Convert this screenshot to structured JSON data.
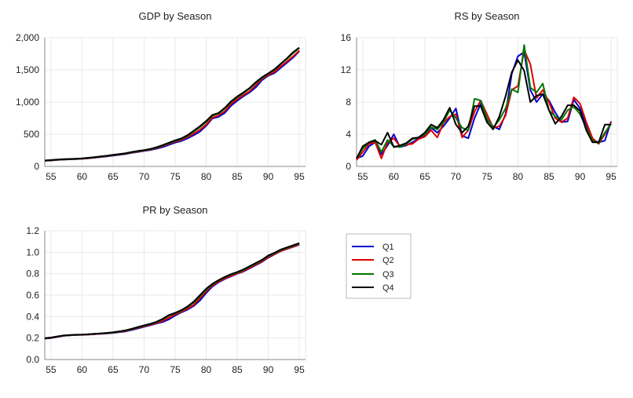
{
  "legend": {
    "items": [
      {
        "label": "Q1",
        "color": "#0000cc"
      },
      {
        "label": "Q2",
        "color": "#dd0000"
      },
      {
        "label": "Q3",
        "color": "#007700"
      },
      {
        "label": "Q4",
        "color": "#000000"
      }
    ]
  },
  "chart_data": [
    {
      "type": "line",
      "title": "GDP by Season",
      "xlabel": "",
      "ylabel": "",
      "xlim": [
        54,
        96
      ],
      "ylim": [
        0,
        2000
      ],
      "xticks": [
        55,
        60,
        65,
        70,
        75,
        80,
        85,
        90,
        95
      ],
      "xtick_labels": [
        "55",
        "60",
        "65",
        "70",
        "75",
        "80",
        "85",
        "90",
        "95"
      ],
      "yticks": [
        0,
        500,
        1000,
        1500,
        2000
      ],
      "ytick_labels": [
        "0",
        "500",
        "1,000",
        "1,500",
        "2,000"
      ],
      "grid": true,
      "x": [
        54,
        55,
        56,
        57,
        58,
        59,
        60,
        61,
        62,
        63,
        64,
        65,
        66,
        67,
        68,
        69,
        70,
        71,
        72,
        73,
        74,
        75,
        76,
        77,
        78,
        79,
        80,
        81,
        82,
        83,
        84,
        85,
        86,
        87,
        88,
        89,
        90,
        91,
        92,
        93,
        94,
        95
      ],
      "series": [
        {
          "name": "Q1",
          "values": [
            88,
            92,
            100,
            105,
            110,
            113,
            118,
            125,
            135,
            145,
            155,
            168,
            180,
            192,
            210,
            225,
            240,
            255,
            275,
            300,
            335,
            370,
            395,
            435,
            485,
            540,
            630,
            745,
            770,
            830,
            940,
            1020,
            1090,
            1150,
            1230,
            1340,
            1410,
            1450,
            1530,
            1610,
            1690,
            1790
          ]
        },
        {
          "name": "Q2",
          "values": [
            90,
            95,
            102,
            108,
            112,
            116,
            120,
            128,
            138,
            148,
            160,
            172,
            185,
            198,
            215,
            230,
            245,
            262,
            285,
            315,
            350,
            385,
            410,
            455,
            510,
            570,
            650,
            760,
            790,
            860,
            970,
            1045,
            1110,
            1170,
            1265,
            1360,
            1420,
            1470,
            1555,
            1630,
            1710,
            1800
          ]
        },
        {
          "name": "Q3",
          "values": [
            91,
            97,
            104,
            110,
            114,
            118,
            123,
            131,
            141,
            152,
            163,
            176,
            189,
            202,
            220,
            236,
            250,
            268,
            292,
            325,
            360,
            398,
            425,
            475,
            540,
            610,
            690,
            790,
            820,
            900,
            1000,
            1075,
            1140,
            1210,
            1300,
            1375,
            1440,
            1500,
            1590,
            1670,
            1760,
            1840
          ]
        },
        {
          "name": "Q4",
          "values": [
            92,
            99,
            106,
            112,
            116,
            120,
            125,
            134,
            144,
            155,
            166,
            179,
            192,
            205,
            224,
            240,
            254,
            272,
            298,
            332,
            368,
            405,
            435,
            485,
            555,
            625,
            705,
            800,
            830,
            910,
            1010,
            1085,
            1150,
            1220,
            1310,
            1385,
            1445,
            1510,
            1595,
            1680,
            1775,
            1845
          ]
        }
      ]
    },
    {
      "type": "line",
      "title": "RS by Season",
      "xlabel": "",
      "ylabel": "",
      "xlim": [
        54,
        96
      ],
      "ylim": [
        0,
        16
      ],
      "xticks": [
        55,
        60,
        65,
        70,
        75,
        80,
        85,
        90,
        95
      ],
      "xtick_labels": [
        "55",
        "60",
        "65",
        "70",
        "75",
        "80",
        "85",
        "90",
        "95"
      ],
      "yticks": [
        0,
        4,
        8,
        12,
        16
      ],
      "ytick_labels": [
        "0",
        "4",
        "8",
        "12",
        "16"
      ],
      "grid": true,
      "x": [
        54,
        55,
        56,
        57,
        58,
        59,
        60,
        61,
        62,
        63,
        64,
        65,
        66,
        67,
        68,
        69,
        70,
        71,
        72,
        73,
        74,
        75,
        76,
        77,
        78,
        79,
        80,
        81,
        82,
        83,
        84,
        85,
        86,
        87,
        88,
        89,
        90,
        91,
        92,
        93,
        94,
        95
      ],
      "series": [
        {
          "name": "Q1",
          "values": [
            1.0,
            1.3,
            2.5,
            3.0,
            1.5,
            2.6,
            4.0,
            2.4,
            2.6,
            3.0,
            3.5,
            3.9,
            4.8,
            4.2,
            5.0,
            6.0,
            7.2,
            3.8,
            3.5,
            6.0,
            7.8,
            5.8,
            5.0,
            4.6,
            6.5,
            11.5,
            13.7,
            14.2,
            9.5,
            8.0,
            9.0,
            8.2,
            6.7,
            5.5,
            5.6,
            8.3,
            7.2,
            5.2,
            3.3,
            3.0,
            3.2,
            5.6
          ]
        },
        {
          "name": "Q2",
          "values": [
            0.8,
            1.8,
            2.8,
            3.0,
            1.0,
            3.0,
            3.5,
            2.5,
            2.7,
            2.8,
            3.4,
            3.7,
            4.5,
            3.6,
            5.4,
            6.2,
            6.5,
            3.6,
            4.5,
            6.8,
            8.2,
            6.5,
            4.8,
            5.0,
            6.3,
            9.5,
            10.0,
            14.5,
            12.7,
            8.5,
            9.5,
            8.0,
            6.0,
            5.5,
            6.0,
            8.6,
            7.8,
            5.5,
            3.5,
            2.8,
            4.0,
            5.5
          ]
        },
        {
          "name": "Q3",
          "values": [
            1.0,
            2.2,
            3.0,
            3.3,
            1.8,
            3.3,
            2.5,
            2.4,
            2.8,
            3.4,
            3.6,
            4.0,
            4.9,
            4.6,
            5.5,
            7.0,
            6.0,
            4.8,
            4.5,
            8.4,
            8.2,
            6.0,
            4.8,
            5.8,
            7.2,
            9.6,
            9.2,
            15.1,
            9.8,
            9.2,
            10.3,
            7.0,
            6.2,
            5.8,
            7.0,
            7.4,
            6.5,
            4.8,
            3.2,
            2.9,
            4.2,
            5.3
          ]
        },
        {
          "name": "Q4",
          "values": [
            1.0,
            2.5,
            3.0,
            3.2,
            2.7,
            4.2,
            2.4,
            2.6,
            2.9,
            3.5,
            3.6,
            4.2,
            5.2,
            4.8,
            5.8,
            7.3,
            5.2,
            4.2,
            5.0,
            7.5,
            7.5,
            5.5,
            4.6,
            6.2,
            8.7,
            11.7,
            13.2,
            11.9,
            8.0,
            8.8,
            9.0,
            7.0,
            5.3,
            6.2,
            7.6,
            7.6,
            6.9,
            4.5,
            3.0,
            3.0,
            5.2,
            5.2
          ]
        }
      ]
    },
    {
      "type": "line",
      "title": "PR by Season",
      "xlabel": "",
      "ylabel": "",
      "xlim": [
        54,
        96
      ],
      "ylim": [
        0,
        1.2
      ],
      "xticks": [
        55,
        60,
        65,
        70,
        75,
        80,
        85,
        90,
        95
      ],
      "xtick_labels": [
        "55",
        "60",
        "65",
        "70",
        "75",
        "80",
        "85",
        "90",
        "95"
      ],
      "yticks": [
        0,
        0.2,
        0.4,
        0.6,
        0.8,
        1.0,
        1.2
      ],
      "ytick_labels": [
        "0.0",
        "0.2",
        "0.4",
        "0.6",
        "0.8",
        "1.0",
        "1.2"
      ],
      "grid": true,
      "x": [
        54,
        55,
        56,
        57,
        58,
        59,
        60,
        61,
        62,
        63,
        64,
        65,
        66,
        67,
        68,
        69,
        70,
        71,
        72,
        73,
        74,
        75,
        76,
        77,
        78,
        79,
        80,
        81,
        82,
        83,
        84,
        85,
        86,
        87,
        88,
        89,
        90,
        91,
        92,
        93,
        94,
        95
      ],
      "series": [
        {
          "name": "Q1",
          "values": [
            0.195,
            0.2,
            0.21,
            0.22,
            0.225,
            0.228,
            0.23,
            0.232,
            0.236,
            0.24,
            0.244,
            0.248,
            0.255,
            0.262,
            0.275,
            0.29,
            0.305,
            0.32,
            0.335,
            0.35,
            0.375,
            0.41,
            0.44,
            0.465,
            0.5,
            0.55,
            0.62,
            0.68,
            0.72,
            0.75,
            0.775,
            0.8,
            0.82,
            0.85,
            0.88,
            0.91,
            0.95,
            0.98,
            1.01,
            1.03,
            1.05,
            1.07
          ]
        },
        {
          "name": "Q2",
          "values": [
            0.196,
            0.202,
            0.212,
            0.221,
            0.226,
            0.229,
            0.231,
            0.233,
            0.237,
            0.241,
            0.245,
            0.25,
            0.258,
            0.266,
            0.28,
            0.295,
            0.31,
            0.325,
            0.34,
            0.36,
            0.39,
            0.42,
            0.445,
            0.475,
            0.51,
            0.57,
            0.635,
            0.69,
            0.725,
            0.755,
            0.78,
            0.802,
            0.825,
            0.855,
            0.885,
            0.915,
            0.955,
            0.982,
            1.012,
            1.032,
            1.052,
            1.072
          ]
        },
        {
          "name": "Q3",
          "values": [
            0.198,
            0.204,
            0.214,
            0.223,
            0.227,
            0.23,
            0.232,
            0.235,
            0.239,
            0.243,
            0.247,
            0.252,
            0.261,
            0.27,
            0.285,
            0.3,
            0.315,
            0.33,
            0.348,
            0.375,
            0.41,
            0.43,
            0.455,
            0.49,
            0.53,
            0.59,
            0.65,
            0.7,
            0.735,
            0.765,
            0.79,
            0.81,
            0.835,
            0.865,
            0.895,
            0.925,
            0.965,
            0.99,
            1.02,
            1.04,
            1.06,
            1.08
          ]
        },
        {
          "name": "Q4",
          "values": [
            0.199,
            0.205,
            0.215,
            0.224,
            0.228,
            0.231,
            0.233,
            0.236,
            0.24,
            0.244,
            0.248,
            0.254,
            0.263,
            0.272,
            0.287,
            0.303,
            0.318,
            0.333,
            0.352,
            0.38,
            0.415,
            0.435,
            0.46,
            0.495,
            0.54,
            0.6,
            0.66,
            0.705,
            0.74,
            0.77,
            0.795,
            0.815,
            0.84,
            0.87,
            0.9,
            0.93,
            0.97,
            0.995,
            1.025,
            1.045,
            1.065,
            1.085
          ]
        }
      ]
    }
  ]
}
